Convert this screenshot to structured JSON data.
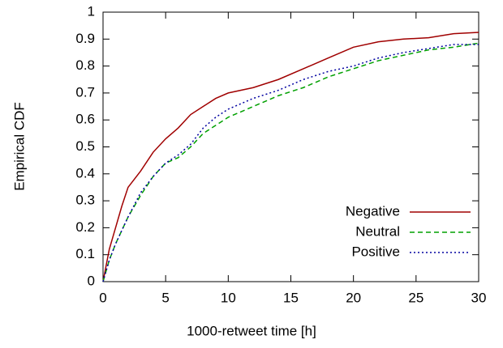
{
  "chart_data": {
    "type": "line",
    "xlabel": "1000-retweet time [h]",
    "ylabel": "Empirical CDF",
    "x": [
      0,
      0.5,
      1,
      1.5,
      2,
      3,
      4,
      5,
      6,
      7,
      8,
      9,
      10,
      12,
      14,
      16,
      18,
      20,
      22,
      24,
      26,
      28,
      30
    ],
    "series": [
      {
        "name": "Negative",
        "color": "#a00000",
        "style": "solid",
        "values": [
          0,
          0.12,
          0.2,
          0.28,
          0.35,
          0.41,
          0.48,
          0.53,
          0.57,
          0.62,
          0.65,
          0.68,
          0.7,
          0.72,
          0.75,
          0.79,
          0.83,
          0.87,
          0.89,
          0.9,
          0.905,
          0.92,
          0.925
        ]
      },
      {
        "name": "Neutral",
        "color": "#00a000",
        "style": "dashed",
        "values": [
          0,
          0.08,
          0.14,
          0.19,
          0.24,
          0.32,
          0.39,
          0.44,
          0.46,
          0.5,
          0.55,
          0.58,
          0.61,
          0.65,
          0.69,
          0.72,
          0.76,
          0.79,
          0.82,
          0.84,
          0.86,
          0.87,
          0.885
        ]
      },
      {
        "name": "Positive",
        "color": "#0000a0",
        "style": "dotted",
        "values": [
          0,
          0.08,
          0.14,
          0.19,
          0.24,
          0.33,
          0.39,
          0.44,
          0.47,
          0.51,
          0.57,
          0.61,
          0.64,
          0.68,
          0.71,
          0.75,
          0.78,
          0.8,
          0.83,
          0.85,
          0.865,
          0.88,
          0.88
        ]
      }
    ],
    "xlim": [
      0,
      30
    ],
    "xticks": [
      0,
      5,
      10,
      15,
      20,
      25,
      30
    ],
    "ylim": [
      0,
      1
    ],
    "yticks": [
      0,
      0.1,
      0.2,
      0.3,
      0.4,
      0.5,
      0.6,
      0.7,
      0.8,
      0.9,
      1
    ],
    "grid": false,
    "legend": "lower right"
  }
}
